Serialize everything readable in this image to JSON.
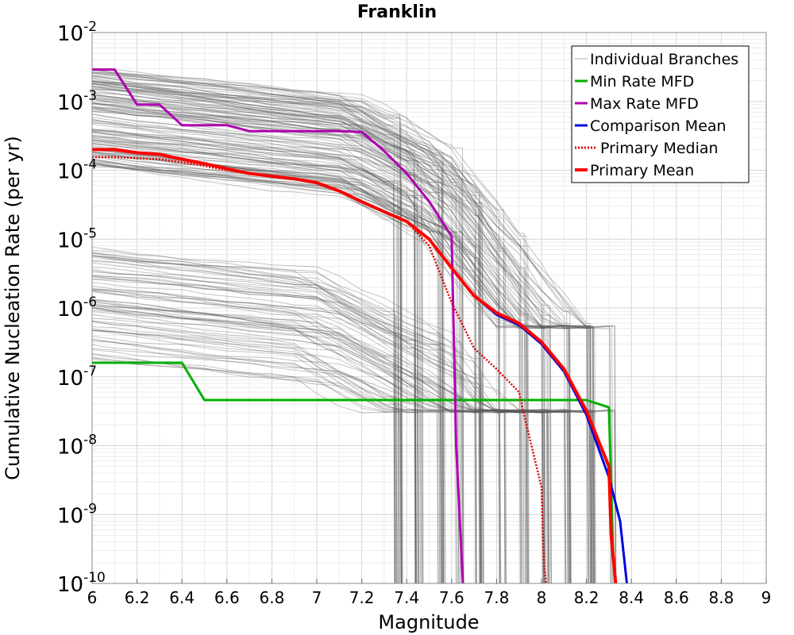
{
  "chart_data": {
    "type": "line",
    "title": "Franklin",
    "xlabel": "Magnitude",
    "ylabel": "Cumulative Nucleation Rate (per yr)",
    "xlim": [
      6,
      9
    ],
    "ylim": [
      1e-10,
      0.01
    ],
    "yscale": "log",
    "grid": true,
    "x_ticks": [
      "6",
      "6.2",
      "6.4",
      "6.6",
      "6.8",
      "7",
      "7.2",
      "7.4",
      "7.6",
      "7.8",
      "8",
      "8.2",
      "8.4",
      "8.6",
      "8.8",
      "9"
    ],
    "y_ticks": [
      {
        "base": "10",
        "exp": "-10",
        "value": 1e-10
      },
      {
        "base": "10",
        "exp": "-9",
        "value": 1e-09
      },
      {
        "base": "10",
        "exp": "-8",
        "value": 1e-08
      },
      {
        "base": "10",
        "exp": "-7",
        "value": 1e-07
      },
      {
        "base": "10",
        "exp": "-6",
        "value": 1e-06
      },
      {
        "base": "10",
        "exp": "-5",
        "value": 1e-05
      },
      {
        "base": "10",
        "exp": "-4",
        "value": 0.0001
      },
      {
        "base": "10",
        "exp": "-3",
        "value": 0.001
      },
      {
        "base": "10",
        "exp": "-2",
        "value": 0.01
      }
    ],
    "legend_position": "top-right",
    "branches": {
      "name": "Individual Branches",
      "color": "#555555",
      "note": "many logic-tree branches drawn in gray"
    },
    "series": [
      {
        "name": "Min Rate MFD",
        "color": "#00b000",
        "style": "solid",
        "x": [
          6.0,
          6.4,
          6.5,
          8.2,
          8.3,
          8.32,
          8.33
        ],
        "y": [
          1.6e-07,
          1.6e-07,
          4.6e-08,
          4.6e-08,
          3.6e-08,
          2e-10,
          1e-10
        ]
      },
      {
        "name": "Max Rate MFD",
        "color": "#b000b0",
        "style": "solid",
        "x": [
          6.0,
          6.1,
          6.2,
          6.3,
          6.4,
          6.5,
          6.6,
          6.7,
          6.8,
          6.9,
          7.0,
          7.1,
          7.2,
          7.3,
          7.4,
          7.5,
          7.6,
          7.62,
          7.65
        ],
        "y": [
          0.0029,
          0.0029,
          0.0009,
          0.0009,
          0.00045,
          0.00045,
          0.00045,
          0.00037,
          0.00037,
          0.00037,
          0.00037,
          0.00037,
          0.00036,
          0.00019,
          9e-05,
          3.5e-05,
          1.1e-05,
          1e-08,
          1e-10
        ]
      },
      {
        "name": "Comparison Mean",
        "color": "#0000e0",
        "style": "solid",
        "x": [
          6.0,
          6.1,
          6.2,
          6.3,
          6.4,
          6.5,
          6.6,
          6.7,
          6.8,
          6.9,
          7.0,
          7.1,
          7.2,
          7.3,
          7.4,
          7.5,
          7.6,
          7.7,
          7.8,
          7.9,
          8.0,
          8.1,
          8.2,
          8.3,
          8.35,
          8.38
        ],
        "y": [
          0.0002,
          0.0002,
          0.00018,
          0.00017,
          0.000145,
          0.000125,
          0.000105,
          9e-05,
          8.2e-05,
          7.5e-05,
          6.6e-05,
          5e-05,
          3.5e-05,
          2.5e-05,
          1.8e-05,
          1e-05,
          3.8e-06,
          1.5e-06,
          8e-07,
          5.7e-07,
          3e-07,
          1.2e-07,
          2.8e-08,
          3.5e-09,
          8e-10,
          1e-10
        ]
      },
      {
        "name": "Primary Median",
        "color": "#e00000",
        "style": "dotted",
        "x": [
          6.0,
          6.1,
          6.2,
          6.3,
          6.4,
          6.5,
          6.6,
          6.7,
          6.8,
          6.9,
          7.0,
          7.1,
          7.2,
          7.3,
          7.4,
          7.5,
          7.6,
          7.7,
          7.8,
          7.9,
          7.92,
          8.0,
          8.01,
          8.02
        ],
        "y": [
          0.000155,
          0.000155,
          0.00015,
          0.000145,
          0.00013,
          0.000115,
          0.0001,
          9e-05,
          8e-05,
          7.5e-05,
          6.5e-05,
          5e-05,
          3.5e-05,
          2.5e-05,
          1.8e-05,
          8e-06,
          1.2e-06,
          2.6e-07,
          1.3e-07,
          6e-08,
          3e-08,
          2.5e-09,
          2e-10,
          1e-10
        ]
      },
      {
        "name": "Primary Mean",
        "color": "#ff0000",
        "style": "solid-thick",
        "x": [
          6.0,
          6.1,
          6.2,
          6.3,
          6.4,
          6.5,
          6.6,
          6.7,
          6.8,
          6.9,
          7.0,
          7.1,
          7.2,
          7.3,
          7.4,
          7.5,
          7.6,
          7.7,
          7.8,
          7.9,
          8.0,
          8.1,
          8.2,
          8.3,
          8.31,
          8.33
        ],
        "y": [
          0.0002,
          0.0002,
          0.00018,
          0.00017,
          0.000145,
          0.000125,
          0.000105,
          9e-05,
          8.2e-05,
          7.5e-05,
          6.6e-05,
          5e-05,
          3.5e-05,
          2.5e-05,
          1.8e-05,
          1e-05,
          3.8e-06,
          1.5e-06,
          8.5e-07,
          6e-07,
          3.2e-07,
          1.3e-07,
          3.2e-08,
          5e-09,
          5e-10,
          1e-10
        ]
      }
    ]
  }
}
